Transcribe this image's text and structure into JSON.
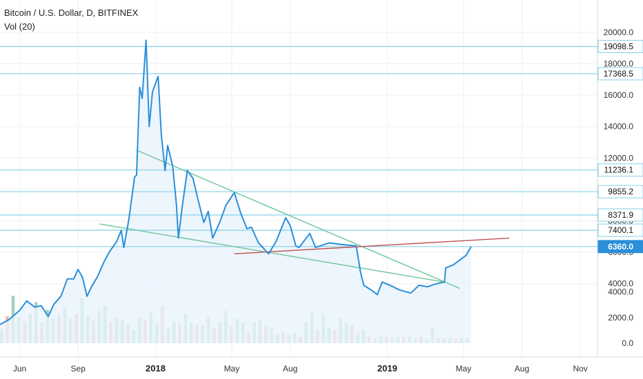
{
  "legend": {
    "symbol_line": "Bitcoin / U.S. Dollar, D, BITFINEX",
    "indicator": "Vol (20)"
  },
  "colors": {
    "price_line": "#2a8fd9",
    "area_fill": "#e8f2fc",
    "level_line": "#86d1e6",
    "trend_green": "#6dc49b",
    "trend_red": "#c0504d",
    "vol_up": "#86c5a4",
    "vol_down": "#e79a9a",
    "grid": "#eef0f3",
    "axis_text": "#333333",
    "last_price_bg": "#2a8fd9"
  },
  "chart_data": {
    "type": "line",
    "x_axis": {
      "type": "date",
      "range": [
        "2017-05-01",
        "2019-11-28"
      ],
      "ticks": [
        {
          "date": "2017-06-01",
          "label": "Jun",
          "major": false
        },
        {
          "date": "2017-09-01",
          "label": "Sep",
          "major": false
        },
        {
          "date": "2018-01-01",
          "label": "2018",
          "major": true
        },
        {
          "date": "2018-05-01",
          "label": "May",
          "major": false
        },
        {
          "date": "2018-08-01",
          "label": "Aug",
          "major": false
        },
        {
          "date": "2019-01-01",
          "label": "2019",
          "major": true
        },
        {
          "date": "2019-05-01",
          "label": "May",
          "major": false
        },
        {
          "date": "2019-08-01",
          "label": "Aug",
          "major": false
        },
        {
          "date": "2019-11-01",
          "label": "Nov",
          "major": false
        }
      ]
    },
    "y_axis": {
      "range": [
        1000,
        20700
      ],
      "ticks": [
        {
          "value": 4000,
          "label": "4000.0"
        },
        {
          "value": 6000,
          "label": "6000.0"
        },
        {
          "value": 8000,
          "label": "8000.0"
        },
        {
          "value": 10000,
          "label": "10000.0"
        },
        {
          "value": 12000,
          "label": "12000.0"
        },
        {
          "value": 14000,
          "label": "14000.0"
        },
        {
          "value": 16000,
          "label": "16000.0"
        },
        {
          "value": 18000,
          "label": "18000.0"
        },
        {
          "value": 20000,
          "label": "20000.0"
        }
      ]
    },
    "volume_axis": {
      "ticks": [
        {
          "value": 0,
          "label": "0.0"
        },
        {
          "value": 2000,
          "label": "2000.0"
        },
        {
          "value": 4000,
          "label": "4000.0"
        }
      ],
      "max": 5000
    },
    "series": [
      {
        "points": [
          [
            "2017-05-01",
            1400
          ],
          [
            "2017-05-15",
            1700
          ],
          [
            "2017-06-01",
            2300
          ],
          [
            "2017-06-12",
            2900
          ],
          [
            "2017-06-25",
            2500
          ],
          [
            "2017-07-05",
            2600
          ],
          [
            "2017-07-16",
            1900
          ],
          [
            "2017-07-25",
            2700
          ],
          [
            "2017-08-05",
            3200
          ],
          [
            "2017-08-15",
            4300
          ],
          [
            "2017-08-25",
            4300
          ],
          [
            "2017-09-01",
            4900
          ],
          [
            "2017-09-08",
            4400
          ],
          [
            "2017-09-15",
            3200
          ],
          [
            "2017-09-22",
            3800
          ],
          [
            "2017-10-01",
            4400
          ],
          [
            "2017-10-12",
            5400
          ],
          [
            "2017-10-20",
            6000
          ],
          [
            "2017-11-01",
            6700
          ],
          [
            "2017-11-08",
            7400
          ],
          [
            "2017-11-12",
            6300
          ],
          [
            "2017-11-20",
            8100
          ],
          [
            "2017-11-29",
            10800
          ],
          [
            "2017-12-02",
            10900
          ],
          [
            "2017-12-07",
            16500
          ],
          [
            "2017-12-11",
            15800
          ],
          [
            "2017-12-17",
            19500
          ],
          [
            "2017-12-22",
            14000
          ],
          [
            "2017-12-27",
            16200
          ],
          [
            "2018-01-05",
            17200
          ],
          [
            "2018-01-10",
            13500
          ],
          [
            "2018-01-16",
            11200
          ],
          [
            "2018-01-20",
            12800
          ],
          [
            "2018-01-28",
            11500
          ],
          [
            "2018-02-03",
            9000
          ],
          [
            "2018-02-06",
            6900
          ],
          [
            "2018-02-12",
            8900
          ],
          [
            "2018-02-20",
            11200
          ],
          [
            "2018-03-01",
            10700
          ],
          [
            "2018-03-08",
            9500
          ],
          [
            "2018-03-18",
            7900
          ],
          [
            "2018-03-25",
            8600
          ],
          [
            "2018-04-01",
            6900
          ],
          [
            "2018-04-12",
            7900
          ],
          [
            "2018-04-22",
            9000
          ],
          [
            "2018-05-05",
            9800
          ],
          [
            "2018-05-15",
            8500
          ],
          [
            "2018-05-25",
            7500
          ],
          [
            "2018-06-01",
            7600
          ],
          [
            "2018-06-12",
            6600
          ],
          [
            "2018-06-28",
            5900
          ],
          [
            "2018-07-10",
            6700
          ],
          [
            "2018-07-25",
            8200
          ],
          [
            "2018-08-01",
            7700
          ],
          [
            "2018-08-10",
            6400
          ],
          [
            "2018-08-15",
            6300
          ],
          [
            "2018-09-01",
            7200
          ],
          [
            "2018-09-10",
            6300
          ],
          [
            "2018-10-01",
            6600
          ],
          [
            "2018-10-20",
            6500
          ],
          [
            "2018-11-13",
            6400
          ],
          [
            "2018-11-20",
            4700
          ],
          [
            "2018-11-25",
            3900
          ],
          [
            "2018-12-10",
            3500
          ],
          [
            "2018-12-16",
            3300
          ],
          [
            "2018-12-24",
            4100
          ],
          [
            "2019-01-05",
            3900
          ],
          [
            "2019-01-20",
            3600
          ],
          [
            "2019-02-07",
            3400
          ],
          [
            "2019-02-20",
            3900
          ],
          [
            "2019-03-05",
            3800
          ],
          [
            "2019-03-20",
            4000
          ],
          [
            "2019-04-01",
            4100
          ],
          [
            "2019-04-03",
            5000
          ],
          [
            "2019-04-15",
            5200
          ],
          [
            "2019-04-25",
            5500
          ],
          [
            "2019-05-05",
            5800
          ],
          [
            "2019-05-13",
            6360
          ]
        ]
      }
    ],
    "volume": [
      1100,
      2100,
      3700,
      2000,
      1700,
      2300,
      3200,
      1600,
      2600,
      1900,
      2200,
      2800,
      1900,
      2300,
      3500,
      2100,
      1800,
      2500,
      2900,
      1700,
      2000,
      1800,
      1500,
      1000,
      2000,
      1800,
      2400,
      1500,
      2900,
      1200,
      1700,
      1500,
      2300,
      1600,
      1400,
      1400,
      2000,
      1200,
      1700,
      2500,
      1300,
      1900,
      1600,
      900,
      1600,
      1800,
      1300,
      1200,
      700,
      900,
      700,
      800,
      500,
      1600,
      2400,
      1000,
      2200,
      1200,
      1000,
      1900,
      1600,
      1400,
      800,
      1000,
      500,
      400,
      600,
      500,
      400,
      500,
      500,
      500,
      400,
      500,
      300,
      1200,
      400,
      300,
      400,
      300,
      400,
      400
    ],
    "horizontal_levels": [
      {
        "value": 19098.5,
        "label": "19098.5",
        "last": false
      },
      {
        "value": 17368.5,
        "label": "17368.5",
        "last": false
      },
      {
        "value": 11236.1,
        "label": "11236.1",
        "last": false
      },
      {
        "value": 9855.2,
        "label": "9855.2",
        "last": false
      },
      {
        "value": 8371.9,
        "label": "8371.9",
        "last": false
      },
      {
        "value": 7400.1,
        "label": "7400.1",
        "last": false
      },
      {
        "value": 6360.0,
        "label": "6360.0",
        "last": true
      }
    ],
    "trendlines": [
      {
        "color": "green",
        "from": [
          "2017-12-02",
          12500
        ],
        "to": [
          "2019-04-25",
          3700
        ]
      },
      {
        "color": "green",
        "from": [
          "2017-10-05",
          7800
        ],
        "to": [
          "2019-04-01",
          4100
        ]
      },
      {
        "color": "red",
        "from": [
          "2018-05-05",
          5900
        ],
        "to": [
          "2019-07-12",
          6900
        ]
      }
    ]
  }
}
